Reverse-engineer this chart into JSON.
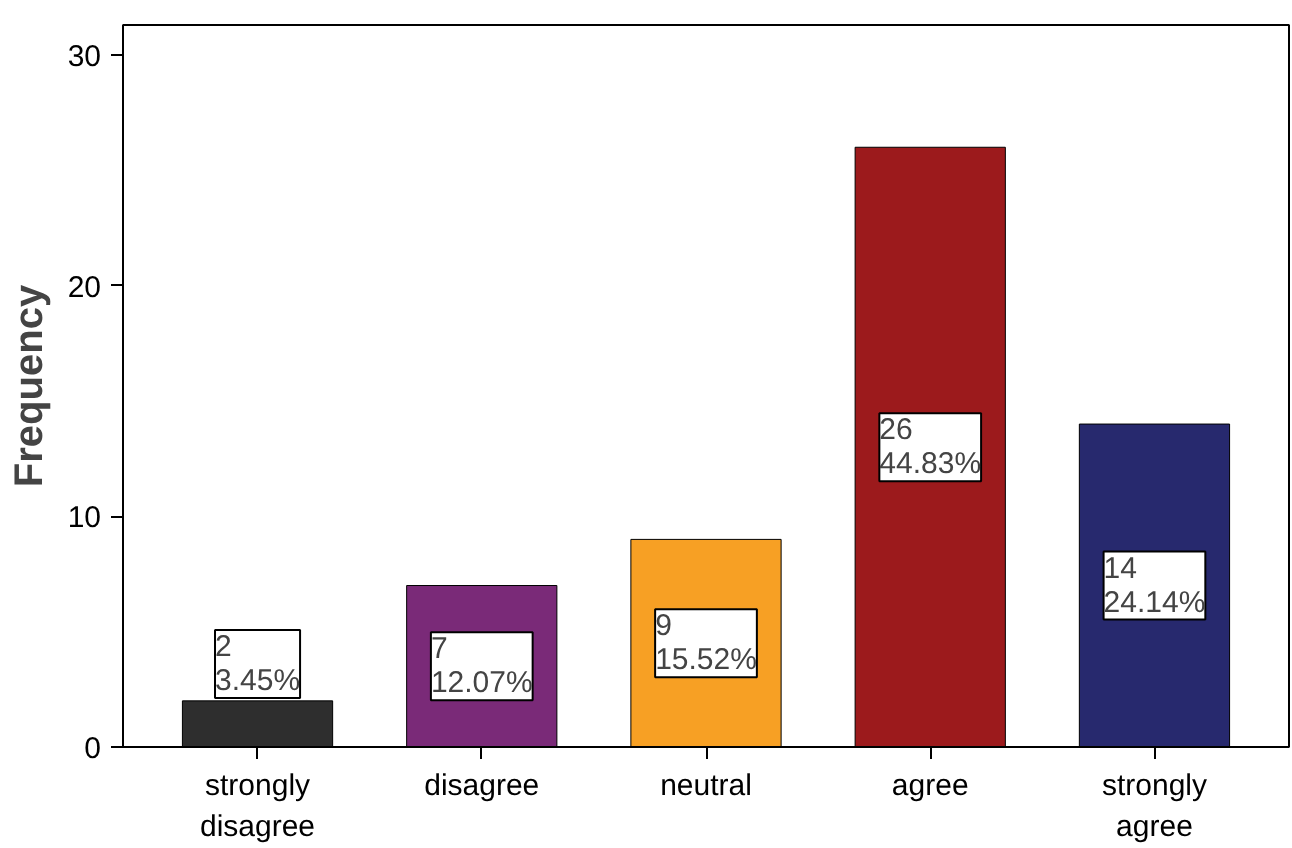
{
  "chart_data": {
    "type": "bar",
    "ylabel": "Frequency",
    "categories": [
      "strongly\ndisagree",
      "disagree",
      "neutral",
      "agree",
      "strongly\nagree"
    ],
    "values": [
      2,
      7,
      9,
      26,
      14
    ],
    "colors": [
      "#2e2e2e",
      "#7a2a78",
      "#f7a024",
      "#9c1a1c",
      "#27296e"
    ],
    "value_labels": [
      "2\n3.45%",
      "7\n12.07%",
      "9\n15.52%",
      "26\n44.83%",
      "14\n24.14%"
    ],
    "ylim": [
      0,
      31.3
    ],
    "yticks": [
      0,
      10,
      20,
      30
    ],
    "grid": false
  }
}
